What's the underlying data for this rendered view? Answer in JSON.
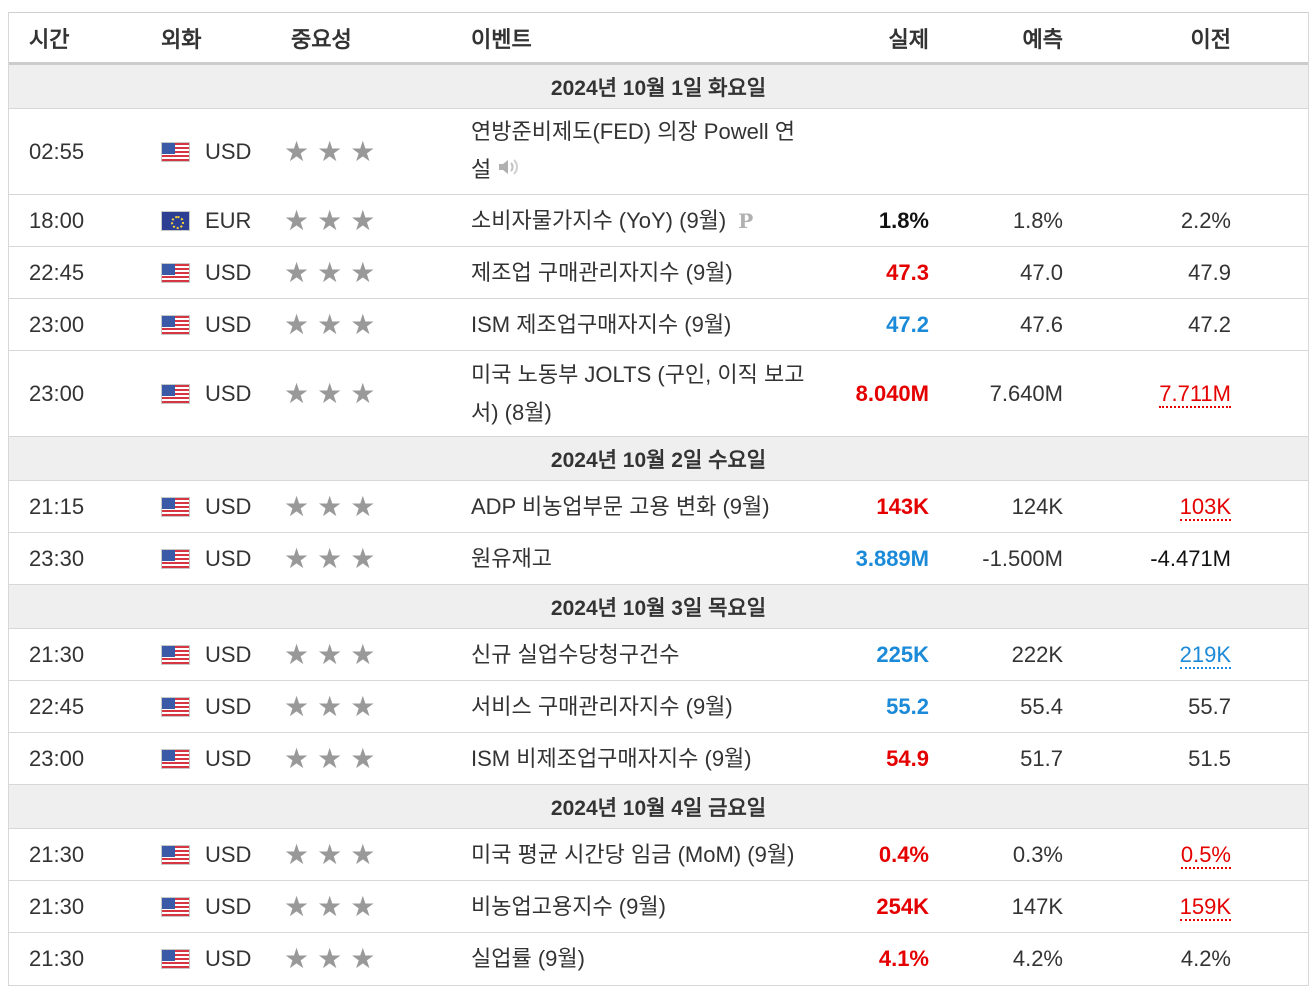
{
  "colors": {
    "better": "#e50000",
    "worse": "#1b8ad8",
    "neutral": "#111111",
    "stars": "#999999"
  },
  "header": {
    "time": "시간",
    "currency": "외화",
    "importance": "중요성",
    "event": "이벤트",
    "actual": "실제",
    "forecast": "예측",
    "previous": "이전"
  },
  "stars": {
    "glyph": "★",
    "rating": 3,
    "max": 3
  },
  "speech_icon": "speaker-icon",
  "preliminary_icon": "P",
  "days": [
    {
      "label": "2024년 10월 1일 화요일",
      "events": [
        {
          "time": "02:55",
          "currency": "USD",
          "flag": "us-flag-icon",
          "event_line1": "연방준비제도(FED) 의장 Powell 연",
          "event_line2": "설",
          "speech": true,
          "actual": "",
          "forecast": "",
          "previous": ""
        },
        {
          "time": "18:00",
          "currency": "EUR",
          "flag": "eu-flag-icon",
          "event": "소비자물가지수 (YoY) (9월)",
          "preliminary": true,
          "actual": "1.8%",
          "actual_color": "black",
          "forecast": "1.8%",
          "previous": "2.2%"
        },
        {
          "time": "22:45",
          "currency": "USD",
          "flag": "us-flag-icon",
          "event": "제조업 구매관리자지수 (9월)",
          "actual": "47.3",
          "actual_color": "red",
          "forecast": "47.0",
          "previous": "47.9"
        },
        {
          "time": "23:00",
          "currency": "USD",
          "flag": "us-flag-icon",
          "event": "ISM 제조업구매자지수 (9월)",
          "actual": "47.2",
          "actual_color": "blue",
          "forecast": "47.6",
          "previous": "47.2"
        },
        {
          "time": "23:00",
          "currency": "USD",
          "flag": "us-flag-icon",
          "event_line1": "미국 노동부 JOLTS (구인, 이직 보고",
          "event_line2": "서) (8월)",
          "actual": "8.040M",
          "actual_color": "red",
          "forecast": "7.640M",
          "previous": "7.711M",
          "previous_revised": "red"
        }
      ]
    },
    {
      "label": "2024년 10월 2일 수요일",
      "events": [
        {
          "time": "21:15",
          "currency": "USD",
          "flag": "us-flag-icon",
          "event": "ADP 비농업부문 고용 변화 (9월)",
          "actual": "143K",
          "actual_color": "red",
          "forecast": "124K",
          "previous": "103K",
          "previous_revised": "red"
        },
        {
          "time": "23:30",
          "currency": "USD",
          "flag": "us-flag-icon",
          "event": "원유재고",
          "actual": "3.889M",
          "actual_color": "blue",
          "forecast": "-1.500M",
          "previous": "-4.471M"
        }
      ]
    },
    {
      "label": "2024년 10월 3일 목요일",
      "events": [
        {
          "time": "21:30",
          "currency": "USD",
          "flag": "us-flag-icon",
          "event": "신규 실업수당청구건수",
          "actual": "225K",
          "actual_color": "blue",
          "forecast": "222K",
          "previous": "219K",
          "previous_revised": "blue"
        },
        {
          "time": "22:45",
          "currency": "USD",
          "flag": "us-flag-icon",
          "event": "서비스 구매관리자지수 (9월)",
          "actual": "55.2",
          "actual_color": "blue",
          "forecast": "55.4",
          "previous": "55.7"
        },
        {
          "time": "23:00",
          "currency": "USD",
          "flag": "us-flag-icon",
          "event": "ISM 비제조업구매자지수 (9월)",
          "actual": "54.9",
          "actual_color": "red",
          "forecast": "51.7",
          "previous": "51.5"
        }
      ]
    },
    {
      "label": "2024년 10월 4일 금요일",
      "events": [
        {
          "time": "21:30",
          "currency": "USD",
          "flag": "us-flag-icon",
          "event": "미국 평균 시간당 임금 (MoM) (9월)",
          "actual": "0.4%",
          "actual_color": "red",
          "forecast": "0.3%",
          "previous": "0.5%",
          "previous_revised": "red"
        },
        {
          "time": "21:30",
          "currency": "USD",
          "flag": "us-flag-icon",
          "event": "비농업고용지수 (9월)",
          "actual": "254K",
          "actual_color": "red",
          "forecast": "147K",
          "previous": "159K",
          "previous_revised": "red"
        },
        {
          "time": "21:30",
          "currency": "USD",
          "flag": "us-flag-icon",
          "event": "실업률 (9월)",
          "actual": "4.1%",
          "actual_color": "red",
          "forecast": "4.2%",
          "previous": "4.2%"
        }
      ]
    }
  ]
}
